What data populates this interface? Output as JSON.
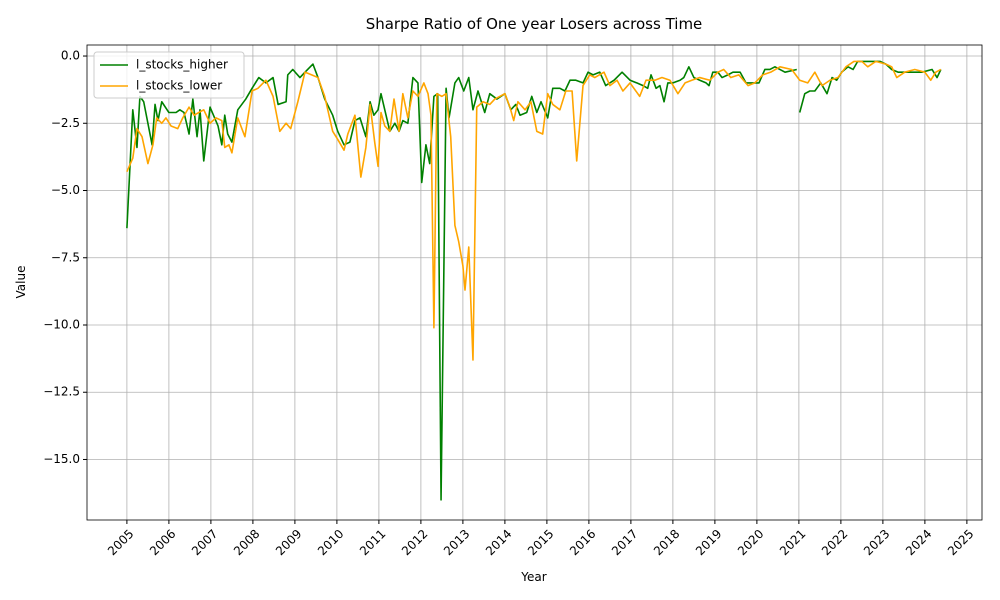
{
  "chart_data": {
    "type": "line",
    "title": "Sharpe Ratio of One year Losers across Time",
    "x_label": "Year",
    "y_label": "Value",
    "xlim": [
      2004.05,
      2025.36
    ],
    "xticks": [
      2005,
      2006,
      2007,
      2008,
      2009,
      2010,
      2011,
      2012,
      2013,
      2014,
      2015,
      2016,
      2017,
      2018,
      2019,
      2020,
      2021,
      2022,
      2023,
      2024,
      2025
    ],
    "ylim": [
      -17.25,
      0.41
    ],
    "yticks": [
      {
        "value": 0,
        "label": "0.0"
      },
      {
        "value": -2.5,
        "label": "−2.5"
      },
      {
        "value": -5,
        "label": "−5.0"
      },
      {
        "value": -7.5,
        "label": "−7.5"
      },
      {
        "value": -10,
        "label": "−10.0"
      },
      {
        "value": -12.5,
        "label": "−12.5"
      },
      {
        "value": -15,
        "label": "−15.0"
      }
    ],
    "grid": true,
    "legend": "upper-left",
    "series": [
      {
        "name": "l_stocks_higher",
        "color": "#008000",
        "x": [
          2005.0,
          2005.14,
          2005.24,
          2005.31,
          2005.4,
          2005.6,
          2005.67,
          2005.74,
          2005.83,
          2006.0,
          2006.17,
          2006.26,
          2006.36,
          2006.48,
          2006.57,
          2006.67,
          2006.74,
          2006.83,
          2006.98,
          2007.17,
          2007.26,
          2007.33,
          2007.4,
          2007.5,
          2007.64,
          2007.83,
          2007.98,
          2008.14,
          2008.31,
          2008.48,
          2008.6,
          2008.79,
          2008.83,
          2008.95,
          2009.12,
          2009.24,
          2009.43,
          2009.55,
          2009.71,
          2009.9,
          2010.02,
          2010.17,
          2010.31,
          2010.43,
          2010.55,
          2010.69,
          2010.79,
          2010.88,
          2010.98,
          2011.05,
          2011.14,
          2011.26,
          2011.38,
          2011.48,
          2011.57,
          2011.69,
          2011.81,
          2011.93,
          2012.02,
          2012.12,
          2012.21,
          2012.31,
          2012.4,
          2012.48,
          2012.6,
          2012.67,
          2012.81,
          2012.9,
          2013.02,
          2013.14,
          2013.24,
          2013.36,
          2013.52,
          2013.64,
          2013.81,
          2014.0,
          2014.14,
          2014.26,
          2014.36,
          2014.52,
          2014.64,
          2014.76,
          2014.86,
          2015.02,
          2015.14,
          2015.31,
          2015.43,
          2015.55,
          2015.69,
          2015.86,
          2015.98,
          2016.1,
          2016.26,
          2016.4,
          2016.6,
          2016.79,
          2016.98,
          2017.14,
          2017.29,
          2017.4,
          2017.48,
          2017.6,
          2017.69,
          2017.79,
          2017.88,
          2018.0,
          2018.17,
          2018.26,
          2018.38,
          2018.5,
          2018.64,
          2018.79,
          2018.86,
          2018.95,
          2019.07,
          2019.17,
          2019.31,
          2019.43,
          2019.6,
          2019.74,
          2019.88,
          2020.05,
          2020.19,
          2020.31,
          2020.43,
          2020.67,
          2020.95,
          2020.98,
          2021.02,
          2021.14,
          2021.26,
          2021.38,
          2021.52,
          2021.67,
          2021.79,
          2021.9,
          2022.02,
          2022.17,
          2022.29,
          2022.4,
          2022.55,
          2022.67,
          2022.93,
          2023.07,
          2023.21,
          2023.36,
          2023.67,
          2023.93,
          2024.17,
          2024.29,
          2024.38
        ],
        "values": [
          -6.4,
          -2.0,
          -3.4,
          -1.5,
          -1.7,
          -3.3,
          -1.8,
          -2.4,
          -1.7,
          -2.1,
          -2.1,
          -2.0,
          -2.1,
          -2.9,
          -1.6,
          -3.0,
          -2.0,
          -3.9,
          -1.9,
          -2.6,
          -3.3,
          -2.2,
          -2.9,
          -3.2,
          -2.0,
          -1.6,
          -1.2,
          -0.8,
          -1.0,
          -0.8,
          -1.8,
          -1.7,
          -0.7,
          -0.5,
          -0.8,
          -0.6,
          -0.3,
          -0.8,
          -1.6,
          -2.2,
          -2.8,
          -3.3,
          -3.2,
          -2.4,
          -2.3,
          -3.0,
          -1.7,
          -2.2,
          -2.0,
          -1.4,
          -2.0,
          -2.8,
          -2.5,
          -2.8,
          -2.4,
          -2.5,
          -0.8,
          -1.0,
          -4.7,
          -3.3,
          -4.0,
          -1.5,
          -1.4,
          -16.5,
          -1.2,
          -2.3,
          -1.0,
          -0.8,
          -1.3,
          -0.8,
          -2.0,
          -1.3,
          -2.1,
          -1.4,
          -1.6,
          -1.4,
          -2.0,
          -1.8,
          -2.2,
          -2.1,
          -1.5,
          -2.1,
          -1.7,
          -2.3,
          -1.2,
          -1.2,
          -1.3,
          -0.9,
          -0.9,
          -1.0,
          -0.6,
          -0.7,
          -0.6,
          -1.1,
          -0.9,
          -0.6,
          -0.9,
          -1.0,
          -1.1,
          -1.2,
          -0.7,
          -1.2,
          -1.1,
          -1.7,
          -1.0,
          -1.0,
          -0.9,
          -0.8,
          -0.4,
          -0.8,
          -0.9,
          -1.0,
          -1.1,
          -0.6,
          -0.6,
          -0.8,
          -0.7,
          -0.6,
          -0.6,
          -1.0,
          -1.0,
          -1.0,
          -0.5,
          -0.5,
          -0.4,
          -0.6,
          -0.5,
          null,
          -2.1,
          -1.4,
          -1.3,
          -1.3,
          -1.0,
          -1.4,
          -0.8,
          -0.9,
          -0.6,
          -0.4,
          -0.5,
          -0.2,
          -0.2,
          -0.2,
          -0.2,
          -0.3,
          -0.5,
          -0.6,
          -0.6,
          -0.6,
          -0.5,
          -0.8,
          -0.5
        ]
      },
      {
        "name": "l_stocks_lower",
        "color": "#ffa500",
        "x": [
          2005.0,
          2005.14,
          2005.24,
          2005.36,
          2005.5,
          2005.62,
          2005.71,
          2005.83,
          2005.93,
          2006.05,
          2006.21,
          2006.33,
          2006.48,
          2006.6,
          2006.71,
          2006.83,
          2006.98,
          2007.12,
          2007.26,
          2007.33,
          2007.43,
          2007.5,
          2007.64,
          2007.81,
          2007.98,
          2008.12,
          2008.31,
          2008.48,
          2008.64,
          2008.79,
          2008.9,
          2009.07,
          2009.24,
          2009.4,
          2009.55,
          2009.71,
          2009.9,
          2010.02,
          2010.17,
          2010.26,
          2010.43,
          2010.57,
          2010.69,
          2010.79,
          2010.9,
          2010.98,
          2011.05,
          2011.14,
          2011.26,
          2011.36,
          2011.48,
          2011.57,
          2011.69,
          2011.81,
          2011.93,
          2012.07,
          2012.17,
          2012.24,
          2012.31,
          2012.38,
          2012.5,
          2012.6,
          2012.71,
          2012.81,
          2012.9,
          2013.0,
          2013.05,
          2013.14,
          2013.24,
          2013.33,
          2013.48,
          2013.64,
          2013.76,
          2014.0,
          2014.12,
          2014.21,
          2014.31,
          2014.48,
          2014.62,
          2014.76,
          2014.9,
          2015.02,
          2015.14,
          2015.31,
          2015.45,
          2015.6,
          2015.71,
          2015.86,
          2016.02,
          2016.14,
          2016.36,
          2016.5,
          2016.67,
          2016.81,
          2016.98,
          2017.21,
          2017.36,
          2017.57,
          2017.74,
          2017.93,
          2018.12,
          2018.29,
          2018.45,
          2018.64,
          2018.88,
          2019.07,
          2019.21,
          2019.38,
          2019.57,
          2019.79,
          2019.95,
          2020.14,
          2020.33,
          2020.55,
          2020.83,
          2021.02,
          2021.21,
          2021.38,
          2021.55,
          2021.74,
          2021.93,
          2022.12,
          2022.31,
          2022.5,
          2022.64,
          2022.83,
          2023.07,
          2023.21,
          2023.33,
          2023.52,
          2023.76,
          2024.0,
          2024.14,
          2024.26,
          2024.38
        ],
        "values": [
          -4.3,
          -3.8,
          -2.7,
          -3.0,
          -4.0,
          -3.3,
          -2.3,
          -2.5,
          -2.3,
          -2.6,
          -2.7,
          -2.3,
          -1.9,
          -2.2,
          -2.1,
          -2.0,
          -2.5,
          -2.3,
          -2.4,
          -3.4,
          -3.3,
          -3.6,
          -2.3,
          -3.0,
          -1.3,
          -1.2,
          -0.9,
          -1.5,
          -2.8,
          -2.5,
          -2.7,
          -1.7,
          -0.6,
          -0.7,
          -0.8,
          -1.5,
          -2.8,
          -3.1,
          -3.5,
          -2.9,
          -2.2,
          -4.5,
          -3.4,
          -1.8,
          -3.2,
          -4.1,
          -2.1,
          -2.6,
          -2.8,
          -1.6,
          -2.8,
          -1.4,
          -2.3,
          -1.3,
          -1.5,
          -1.0,
          -1.4,
          -2.2,
          -10.1,
          -1.4,
          -1.5,
          -1.4,
          -3.0,
          -6.3,
          -6.9,
          -7.8,
          -8.7,
          -7.1,
          -11.3,
          -1.9,
          -1.7,
          -1.8,
          -1.6,
          -1.4,
          -1.9,
          -2.4,
          -1.7,
          -2.0,
          -1.7,
          -2.8,
          -2.9,
          -1.4,
          -1.8,
          -2.0,
          -1.3,
          -1.3,
          -3.9,
          -1.1,
          -0.7,
          -0.8,
          -0.6,
          -1.1,
          -0.9,
          -1.3,
          -1.0,
          -1.5,
          -0.9,
          -0.9,
          -0.8,
          -0.9,
          -1.4,
          -1.0,
          -0.9,
          -0.8,
          -0.9,
          -0.6,
          -0.5,
          -0.8,
          -0.7,
          -1.1,
          -1.0,
          -0.7,
          -0.6,
          -0.4,
          -0.5,
          -0.9,
          -1.0,
          -0.6,
          -1.1,
          -0.9,
          -0.8,
          -0.4,
          -0.2,
          -0.2,
          -0.4,
          -0.2,
          -0.3,
          -0.4,
          -0.8,
          -0.6,
          -0.5,
          -0.6,
          -0.9,
          -0.6,
          -0.5
        ]
      }
    ]
  }
}
